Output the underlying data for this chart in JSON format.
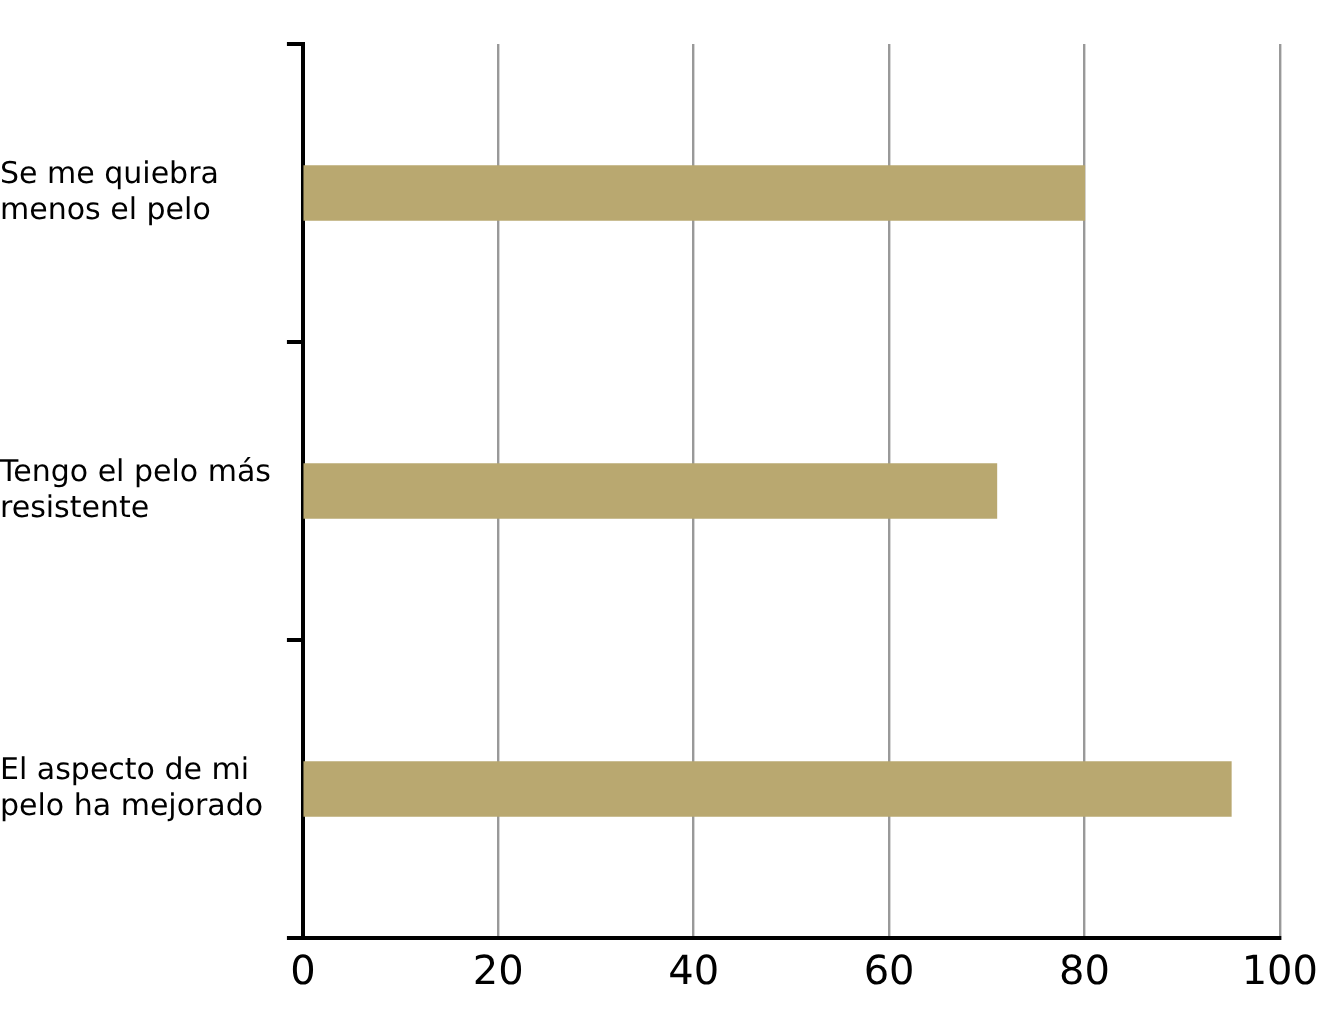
{
  "chart_data": {
    "type": "bar",
    "orientation": "horizontal",
    "categories": [
      "Se me quiebra menos el pelo",
      "Tengo el pelo más resistente",
      "El aspecto de mi pelo ha mejorado"
    ],
    "values": [
      80,
      71,
      95
    ],
    "color": "#b9a870",
    "xlim": [
      0,
      100
    ],
    "xticks": [
      0,
      20,
      40,
      60,
      80,
      100
    ],
    "grid": "x",
    "legend": false
  }
}
